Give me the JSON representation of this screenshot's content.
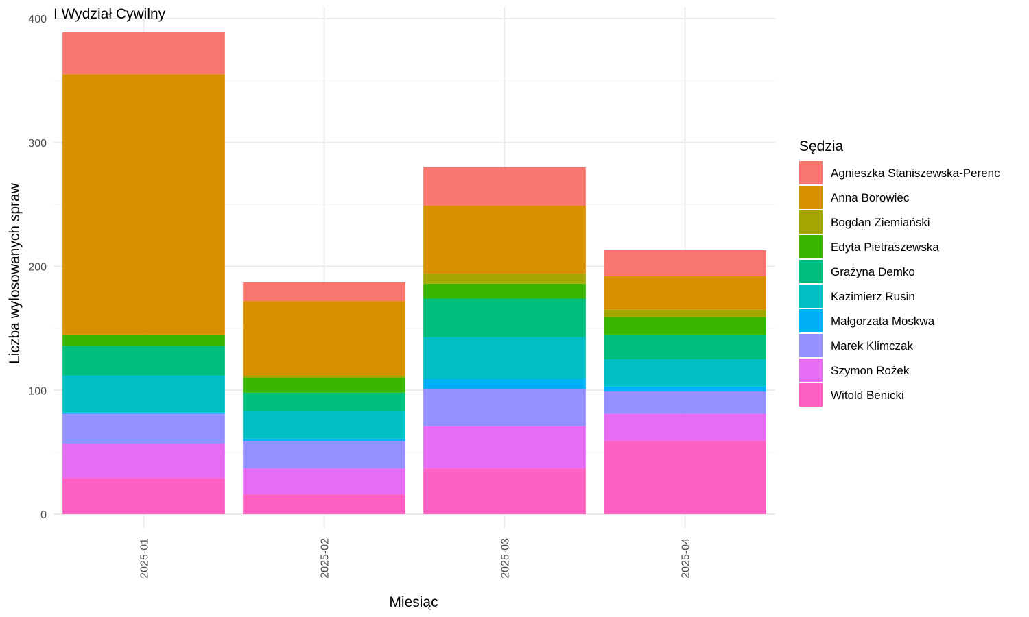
{
  "chart_data": {
    "type": "bar",
    "stacked": true,
    "title": "I Wydział Cywilny",
    "xlabel": "Miesiąc",
    "ylabel": "Liczba wylosowanych spraw",
    "ylim": [
      0,
      400
    ],
    "yticks": [
      0,
      100,
      200,
      300,
      400
    ],
    "grid": true,
    "legend_title": "Sędzia",
    "legend_position": "right",
    "categories": [
      "2025-01",
      "2025-02",
      "2025-03",
      "2025-04"
    ],
    "series": [
      {
        "name": "Witold Benicki",
        "color": "#FF61C3",
        "values": [
          29,
          16,
          37,
          59
        ]
      },
      {
        "name": "Szymon Rożek",
        "color": "#E76BF3",
        "values": [
          28,
          21,
          34,
          22
        ]
      },
      {
        "name": "Marek Klimczak",
        "color": "#9590FF",
        "values": [
          24,
          22,
          30,
          18
        ]
      },
      {
        "name": "Małgorzata Moskwa",
        "color": "#00B0F6",
        "values": [
          1,
          2,
          8,
          4
        ]
      },
      {
        "name": "Kazimierz Rusin",
        "color": "#00BFC4",
        "values": [
          30,
          22,
          34,
          22
        ]
      },
      {
        "name": "Grażyna Demko",
        "color": "#00BF7D",
        "values": [
          24,
          15,
          31,
          20
        ]
      },
      {
        "name": "Edyta Pietraszewska",
        "color": "#39B600",
        "values": [
          9,
          12,
          12,
          14
        ]
      },
      {
        "name": "Bogdan Ziemiański",
        "color": "#A3A500",
        "values": [
          0,
          2,
          8,
          6
        ]
      },
      {
        "name": "Anna Borowiec",
        "color": "#D89000",
        "values": [
          210,
          60,
          55,
          27
        ]
      },
      {
        "name": "Agnieszka Staniszewska-Perenc",
        "color": "#F8766D",
        "values": [
          34,
          15,
          31,
          21
        ]
      }
    ],
    "legend_order": [
      "Agnieszka Staniszewska-Perenc",
      "Anna Borowiec",
      "Bogdan Ziemiański",
      "Edyta Pietraszewska",
      "Grażyna Demko",
      "Kazimierz Rusin",
      "Małgorzata Moskwa",
      "Marek Klimczak",
      "Szymon Rożek",
      "Witold Benicki"
    ]
  }
}
